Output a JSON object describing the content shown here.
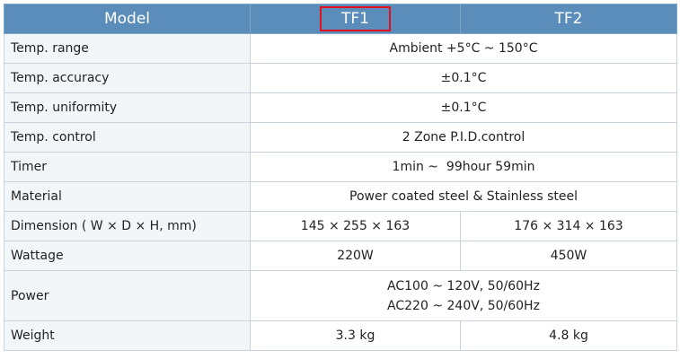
{
  "header": {
    "model": "Model",
    "tf1": "TF1",
    "tf2": "TF2",
    "highlight_color": "#e0101e"
  },
  "rows": [
    {
      "label": "Temp. range",
      "value": "Ambient +5°C ~ 150°C"
    },
    {
      "label": "Temp. accuracy",
      "value": "±0.1°C"
    },
    {
      "label": "Temp. uniformity",
      "value": "±0.1°C"
    },
    {
      "label": "Temp. control",
      "value": "2 Zone P.I.D.control"
    },
    {
      "label": "Timer",
      "value": "1min ~  99hour 59min"
    },
    {
      "label": "Material",
      "value": "Power coated steel & Stainless steel"
    },
    {
      "label": "Dimension ( W × D × H, mm)",
      "tf1": "145 × 255 × 163",
      "tf2": "176 × 314 × 163"
    },
    {
      "label": "Wattage",
      "tf1": "220W",
      "tf2": "450W"
    },
    {
      "label": "Power",
      "line1": "AC100 ~ 120V, 50/60Hz",
      "line2": "AC220 ~ 240V, 50/60Hz"
    },
    {
      "label": "Weight",
      "tf1": "3.3 kg",
      "tf2": "4.8 kg"
    }
  ]
}
